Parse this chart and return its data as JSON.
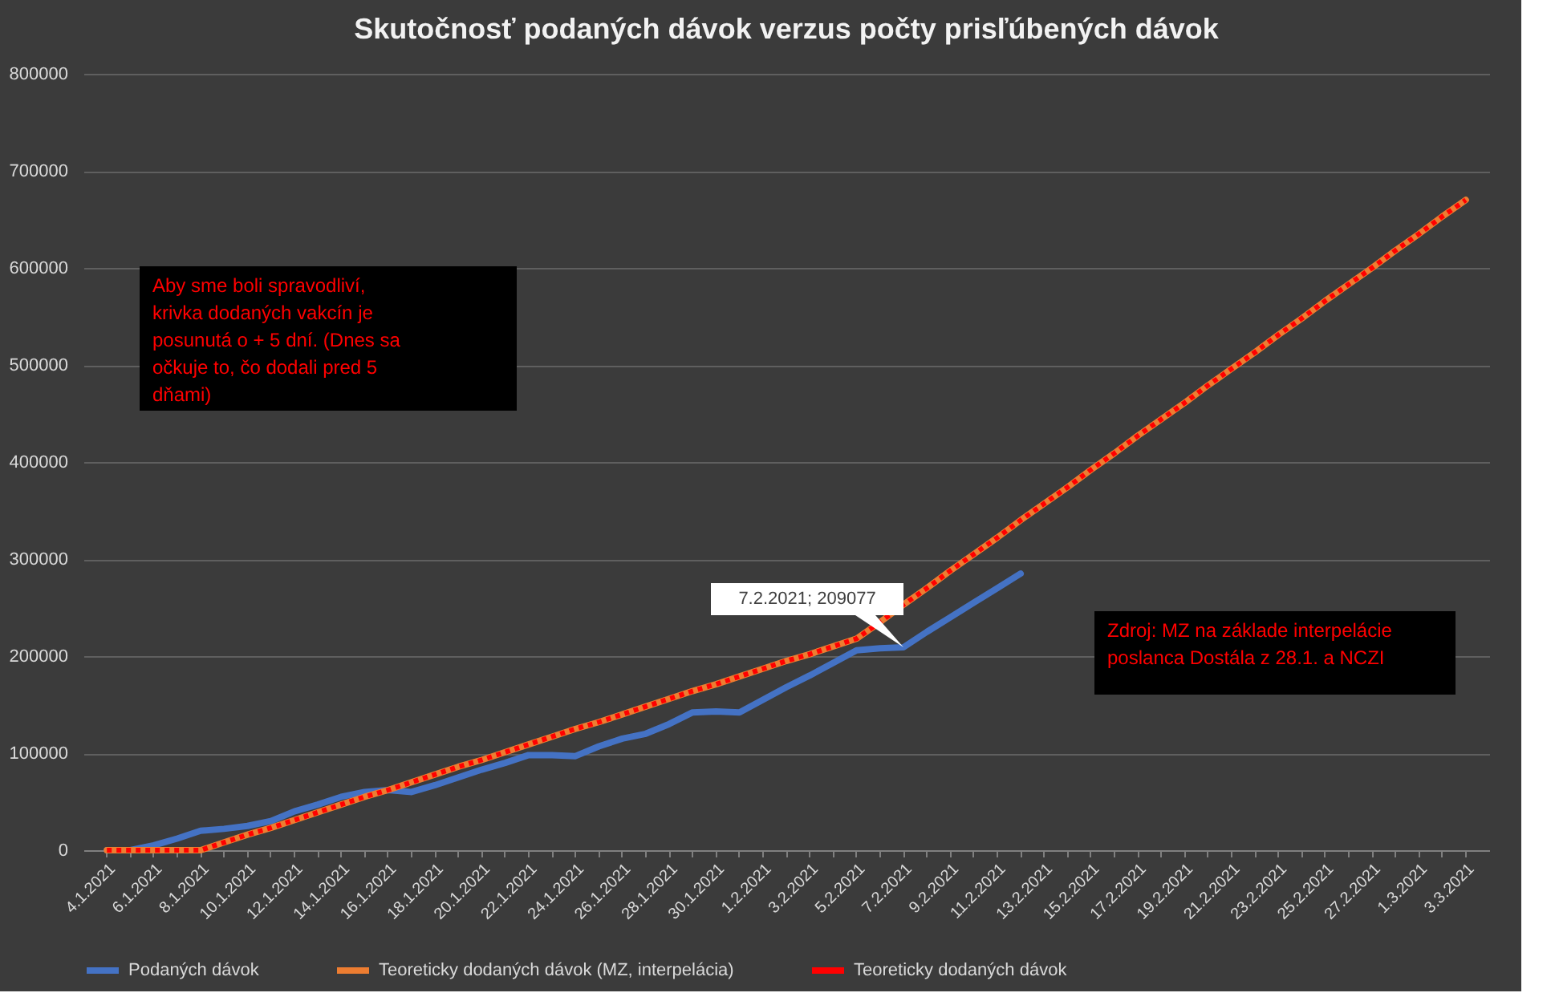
{
  "chart_data": {
    "type": "line",
    "title": "Skutočnosť podaných dávok verzus počty prisľúbených dávok",
    "categories": [
      "4.1.2021",
      null,
      "6.1.2021",
      null,
      "8.1.2021",
      null,
      "10.1.2021",
      null,
      "12.1.2021",
      null,
      "14.1.2021",
      null,
      "16.1.2021",
      null,
      "18.1.2021",
      null,
      "20.1.2021",
      null,
      "22.1.2021",
      null,
      "24.1.2021",
      null,
      "26.1.2021",
      null,
      "28.1.2021",
      null,
      "30.1.2021",
      null,
      "1.2.2021",
      null,
      "3.2.2021",
      null,
      "5.2.2021",
      null,
      "7.2.2021",
      null,
      "9.2.2021",
      null,
      "11.2.2021",
      null,
      "13.2.2021",
      null,
      "15.2.2021",
      null,
      "17.2.2021",
      null,
      "19.2.2021",
      null,
      "21.2.2021",
      null,
      "23.2.2021",
      null,
      "25.2.2021",
      null,
      "27.2.2021",
      null,
      "1.3.2021",
      null,
      "3.3.2021"
    ],
    "series": [
      {
        "name": "Podaných dávok",
        "color": "#4472c4",
        "line_style": "solid",
        "values": [
          0,
          0,
          5000,
          12000,
          20000,
          22000,
          25000,
          30000,
          40000,
          47000,
          55000,
          60000,
          62000,
          60000,
          67000,
          75000,
          83000,
          90000,
          98000,
          98000,
          97000,
          107000,
          115000,
          120000,
          130000,
          142000,
          143000,
          142000,
          155000,
          168000,
          180000,
          193000,
          206000,
          208000,
          209077,
          225000,
          240000,
          255000,
          270000,
          285000,
          null,
          null,
          null,
          null,
          null,
          null,
          null,
          null,
          null,
          null,
          null,
          null,
          null,
          null,
          null,
          null,
          null,
          null,
          null
        ]
      },
      {
        "name": "Teoreticky dodaných dávok (MZ, interpelácia)",
        "color": "#ed7d31",
        "line_style": "solid",
        "values": [
          0,
          0,
          0,
          0,
          0,
          8000,
          16000,
          23000,
          31000,
          39000,
          47000,
          55000,
          62000,
          70000,
          78000,
          86000,
          93000,
          101000,
          109000,
          117000,
          125000,
          132000,
          140000,
          148000,
          156000,
          164000,
          171000,
          179000,
          187000,
          195000,
          202000,
          210000,
          218000,
          235000,
          253000,
          270000,
          288000,
          305000,
          322000,
          340000,
          357000,
          374000,
          392000,
          409000,
          427000,
          444000,
          461000,
          479000,
          496000,
          513000,
          531000,
          548000,
          566000,
          583000,
          600000,
          618000,
          635000,
          653000,
          670000
        ]
      },
      {
        "name": "Teoreticky dodaných dávok",
        "color": "#ff0000",
        "line_style": "dotted",
        "values": [
          0,
          0,
          0,
          0,
          0,
          8000,
          16000,
          23000,
          31000,
          39000,
          47000,
          55000,
          62000,
          70000,
          78000,
          86000,
          93000,
          101000,
          109000,
          117000,
          125000,
          132000,
          140000,
          148000,
          156000,
          164000,
          171000,
          179000,
          187000,
          195000,
          202000,
          210000,
          218000,
          235000,
          253000,
          270000,
          288000,
          305000,
          322000,
          340000,
          357000,
          374000,
          392000,
          409000,
          427000,
          444000,
          461000,
          479000,
          496000,
          513000,
          531000,
          548000,
          566000,
          583000,
          600000,
          618000,
          635000,
          653000,
          670000
        ]
      }
    ],
    "ylim": [
      0,
      800000
    ],
    "yticks": [
      0,
      100000,
      200000,
      300000,
      400000,
      500000,
      600000,
      700000,
      800000
    ],
    "grid": "y",
    "legend": "bottom",
    "marker": "none",
    "annotations": [
      "Aby sme boli spravodliví, krivka dodaných vakcín je posunutá o + 5 dní. (Dnes sa očkuje to, čo dodali pred 5 dňami)",
      {
        "text": "7.2.2021; 209077",
        "x": "7.2.2021",
        "y": 209077
      },
      "Zdroj: MZ na základe interpelácie poslanca Dostála z 28.1. a NCZI"
    ]
  }
}
